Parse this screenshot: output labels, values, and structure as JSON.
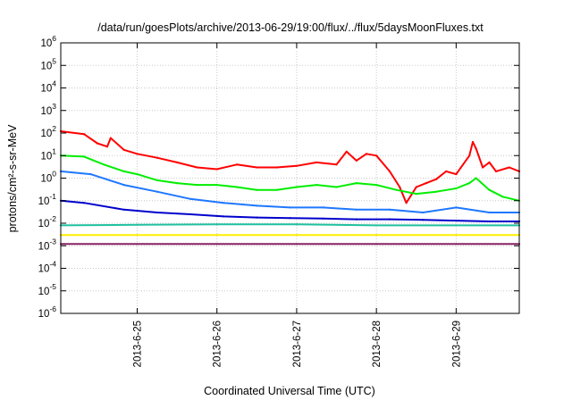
{
  "chart_data": {
    "type": "line",
    "title": "/data/run/goesPlots/archive/2013-06-29/19:00/flux/../flux/5daysMoonFluxes.txt",
    "xlabel": "Coordinated Universal Time (UTC)",
    "ylabel": "protons/cm²-s-sr-MeV",
    "yscale": "log",
    "ylim": [
      1e-06,
      1000000.0
    ],
    "xlim": [
      "2013-06-24T01:00",
      "2013-06-29T19:00"
    ],
    "grid": true,
    "legend": "none",
    "x_ticks": [
      "2013-6-25",
      "2013-6-26",
      "2013-6-27",
      "2013-6-28",
      "2013-6-29"
    ],
    "y_ticks": [
      {
        "base": "10",
        "exp": "6"
      },
      {
        "base": "10",
        "exp": "5"
      },
      {
        "base": "10",
        "exp": "4"
      },
      {
        "base": "10",
        "exp": "3"
      },
      {
        "base": "10",
        "exp": "2"
      },
      {
        "base": "10",
        "exp": "1"
      },
      {
        "base": "10",
        "exp": "0"
      },
      {
        "base": "10",
        "exp": "-1"
      },
      {
        "base": "10",
        "exp": "-2"
      },
      {
        "base": "10",
        "exp": "-3"
      },
      {
        "base": "10",
        "exp": "-4"
      },
      {
        "base": "10",
        "exp": "-5"
      },
      {
        "base": "10",
        "exp": "-6"
      }
    ],
    "series": [
      {
        "color": "#ff0000",
        "x": [
          "2013-06-24T01:00",
          "2013-06-24T08:00",
          "2013-06-24T12:00",
          "2013-06-24T15:00",
          "2013-06-24T16:00",
          "2013-06-24T20:00",
          "2013-06-25T00:00",
          "2013-06-25T06:00",
          "2013-06-25T12:00",
          "2013-06-25T18:00",
          "2013-06-26T00:00",
          "2013-06-26T06:00",
          "2013-06-26T12:00",
          "2013-06-26T18:00",
          "2013-06-27T00:00",
          "2013-06-27T06:00",
          "2013-06-27T12:00",
          "2013-06-27T15:00",
          "2013-06-27T18:00",
          "2013-06-27T21:00",
          "2013-06-28T00:00",
          "2013-06-28T04:00",
          "2013-06-28T07:00",
          "2013-06-28T09:00",
          "2013-06-28T12:00",
          "2013-06-28T15:00",
          "2013-06-28T18:00",
          "2013-06-28T21:00",
          "2013-06-29T00:00",
          "2013-06-29T04:00",
          "2013-06-29T05:00",
          "2013-06-29T06:00",
          "2013-06-29T08:00",
          "2013-06-29T10:00",
          "2013-06-29T12:00",
          "2013-06-29T16:00",
          "2013-06-29T19:00"
        ],
        "y": [
          120,
          90,
          35,
          25,
          60,
          18,
          12,
          8,
          5,
          3,
          2.5,
          4,
          3,
          3,
          3.5,
          5,
          4,
          15,
          6,
          12,
          10,
          2,
          0.4,
          0.08,
          0.4,
          0.6,
          0.9,
          2,
          1.5,
          10,
          40,
          20,
          3,
          5,
          2,
          3,
          2
        ]
      },
      {
        "color": "#00ee00",
        "x": [
          "2013-06-24T01:00",
          "2013-06-24T08:00",
          "2013-06-24T14:00",
          "2013-06-24T20:00",
          "2013-06-25T00:00",
          "2013-06-25T06:00",
          "2013-06-25T12:00",
          "2013-06-25T18:00",
          "2013-06-26T00:00",
          "2013-06-26T06:00",
          "2013-06-26T12:00",
          "2013-06-26T18:00",
          "2013-06-27T00:00",
          "2013-06-27T06:00",
          "2013-06-27T12:00",
          "2013-06-27T18:00",
          "2013-06-28T00:00",
          "2013-06-28T06:00",
          "2013-06-28T12:00",
          "2013-06-28T18:00",
          "2013-06-29T00:00",
          "2013-06-29T04:00",
          "2013-06-29T06:00",
          "2013-06-29T10:00",
          "2013-06-29T14:00",
          "2013-06-29T19:00"
        ],
        "y": [
          10,
          9,
          4,
          2,
          1.5,
          0.8,
          0.6,
          0.5,
          0.5,
          0.4,
          0.3,
          0.3,
          0.4,
          0.5,
          0.4,
          0.6,
          0.5,
          0.3,
          0.2,
          0.25,
          0.35,
          0.6,
          1.0,
          0.3,
          0.15,
          0.1
        ]
      },
      {
        "color": "#1e78ff",
        "x": [
          "2013-06-24T01:00",
          "2013-06-24T10:00",
          "2013-06-24T20:00",
          "2013-06-25T06:00",
          "2013-06-25T16:00",
          "2013-06-26T02:00",
          "2013-06-26T12:00",
          "2013-06-26T22:00",
          "2013-06-27T08:00",
          "2013-06-27T18:00",
          "2013-06-28T04:00",
          "2013-06-28T14:00",
          "2013-06-29T00:00",
          "2013-06-29T10:00",
          "2013-06-29T19:00"
        ],
        "y": [
          2,
          1.5,
          0.5,
          0.25,
          0.12,
          0.08,
          0.06,
          0.05,
          0.05,
          0.04,
          0.04,
          0.03,
          0.05,
          0.03,
          0.03
        ]
      },
      {
        "color": "#0000cc",
        "x": [
          "2013-06-24T01:00",
          "2013-06-24T08:00",
          "2013-06-24T20:00",
          "2013-06-25T06:00",
          "2013-06-25T16:00",
          "2013-06-26T02:00",
          "2013-06-26T12:00",
          "2013-06-26T22:00",
          "2013-06-27T08:00",
          "2013-06-27T18:00",
          "2013-06-28T04:00",
          "2013-06-28T14:00",
          "2013-06-29T00:00",
          "2013-06-29T10:00",
          "2013-06-29T19:00"
        ],
        "y": [
          0.1,
          0.08,
          0.04,
          0.03,
          0.025,
          0.02,
          0.018,
          0.017,
          0.016,
          0.015,
          0.015,
          0.014,
          0.013,
          0.012,
          0.012
        ]
      },
      {
        "color": "#20c0a0",
        "x": [
          "2013-06-24T01:00",
          "2013-06-25T00:00",
          "2013-06-26T00:00",
          "2013-06-27T00:00",
          "2013-06-28T00:00",
          "2013-06-29T00:00",
          "2013-06-29T19:00"
        ],
        "y": [
          0.008,
          0.0085,
          0.009,
          0.009,
          0.008,
          0.008,
          0.008
        ]
      },
      {
        "color": "#ffee00",
        "x": [
          "2013-06-24T01:00",
          "2013-06-25T00:00",
          "2013-06-26T00:00",
          "2013-06-27T00:00",
          "2013-06-28T00:00",
          "2013-06-29T00:00",
          "2013-06-29T19:00"
        ],
        "y": [
          0.003,
          0.003,
          0.003,
          0.003,
          0.003,
          0.003,
          0.003
        ]
      },
      {
        "color": "#882266",
        "x": [
          "2013-06-24T01:00",
          "2013-06-25T00:00",
          "2013-06-26T00:00",
          "2013-06-27T00:00",
          "2013-06-28T00:00",
          "2013-06-29T00:00",
          "2013-06-29T19:00"
        ],
        "y": [
          0.0012,
          0.0012,
          0.0012,
          0.0012,
          0.0012,
          0.0012,
          0.0012
        ]
      }
    ]
  }
}
